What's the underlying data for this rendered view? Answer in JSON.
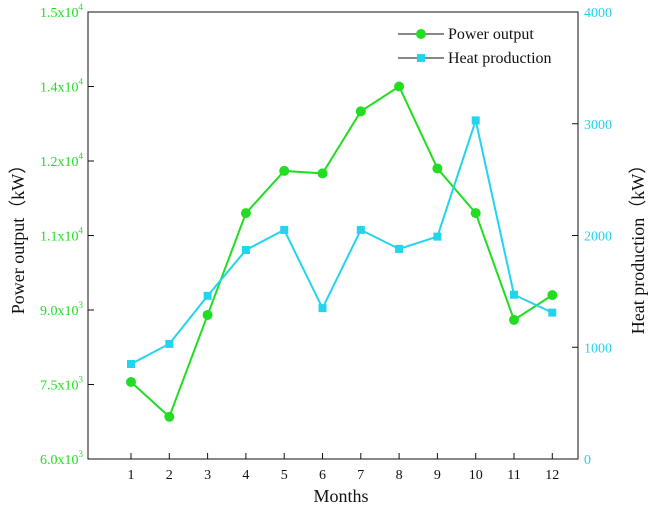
{
  "chart_data": {
    "type": "line",
    "xlabel": "Months",
    "ylabel_left": "Power output（kW）",
    "ylabel_right": "Heat production（kW）",
    "categories": [
      "1",
      "2",
      "3",
      "4",
      "5",
      "6",
      "7",
      "8",
      "9",
      "10",
      "11",
      "12"
    ],
    "y_left_range": [
      6000,
      15000
    ],
    "y_left_ticks": [
      {
        "value": 6000,
        "mantissa": "6.0x10",
        "exp": "3"
      },
      {
        "value": 7500,
        "mantissa": "7.5x10",
        "exp": "3"
      },
      {
        "value": 9000,
        "mantissa": "9.0x10",
        "exp": "3"
      },
      {
        "value": 10500,
        "mantissa": "1.1x10",
        "exp": "4"
      },
      {
        "value": 12000,
        "mantissa": "1.2x10",
        "exp": "4"
      },
      {
        "value": 13500,
        "mantissa": "1.4x10",
        "exp": "4"
      },
      {
        "value": 15000,
        "mantissa": "1.5x10",
        "exp": "4"
      }
    ],
    "y_right_range": [
      0,
      4000
    ],
    "y_right_ticks": [
      "0",
      "1000",
      "2000",
      "3000",
      "4000"
    ],
    "series": [
      {
        "name": "Power output",
        "axis": "left",
        "color": "#22dd22",
        "marker": "circle",
        "values": [
          7550,
          6850,
          8900,
          10950,
          11800,
          11750,
          13000,
          13500,
          11850,
          10950,
          8800,
          9300
        ]
      },
      {
        "name": "Heat production",
        "axis": "right",
        "color": "#22d4ee",
        "marker": "square",
        "values": [
          850,
          1030,
          1460,
          1870,
          2050,
          1350,
          2050,
          1880,
          1990,
          3030,
          1470,
          1310
        ]
      }
    ],
    "legend_position": "top-right",
    "grid": false
  }
}
